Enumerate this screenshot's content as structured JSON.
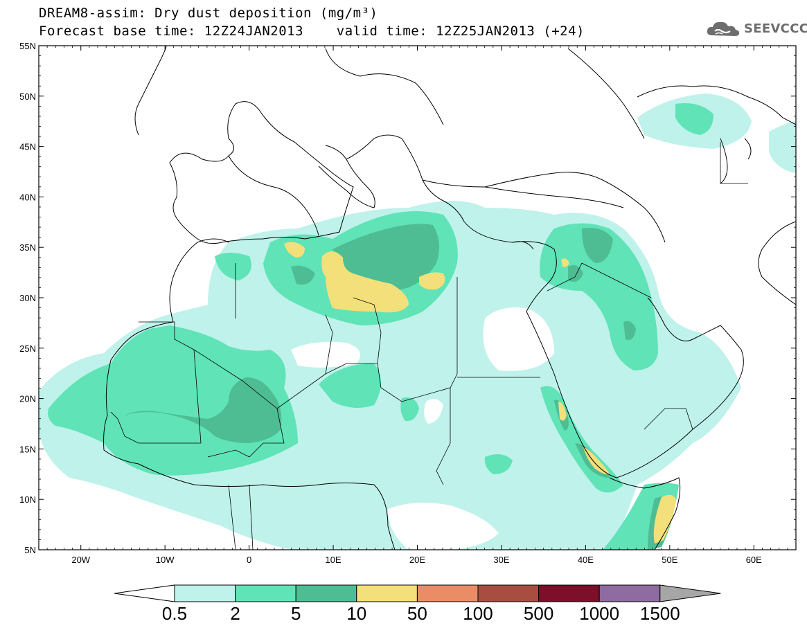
{
  "title": {
    "line1": "DREAM8-assim: Dry dust deposition (mg/m³)",
    "line2": "Forecast base time: 12Z24JAN2013    valid time: 12Z25JAN2013 (+24)"
  },
  "logo": {
    "text": "SEEVCCC",
    "icon": "cloud-icon"
  },
  "axes": {
    "lat_ticks": [
      "55N",
      "50N",
      "45N",
      "40N",
      "35N",
      "30N",
      "25N",
      "20N",
      "15N",
      "10N",
      "5N"
    ],
    "lon_ticks": [
      "20W",
      "10W",
      "0",
      "10E",
      "20E",
      "30E",
      "40E",
      "50E",
      "60E"
    ],
    "lon_range": [
      -25,
      65
    ],
    "lat_range": [
      5,
      55
    ]
  },
  "colorbar": {
    "labels": [
      "0.5",
      "2",
      "5",
      "10",
      "50",
      "100",
      "500",
      "1000",
      "1500"
    ],
    "colors": [
      "#bff2ea",
      "#5fe3b7",
      "#4ebd93",
      "#f3e07a",
      "#ea8d67",
      "#a84e40",
      "#7c0f2a",
      "#8e6ba0",
      "#a6a6a6"
    ],
    "under_color": "#ffffff"
  }
}
